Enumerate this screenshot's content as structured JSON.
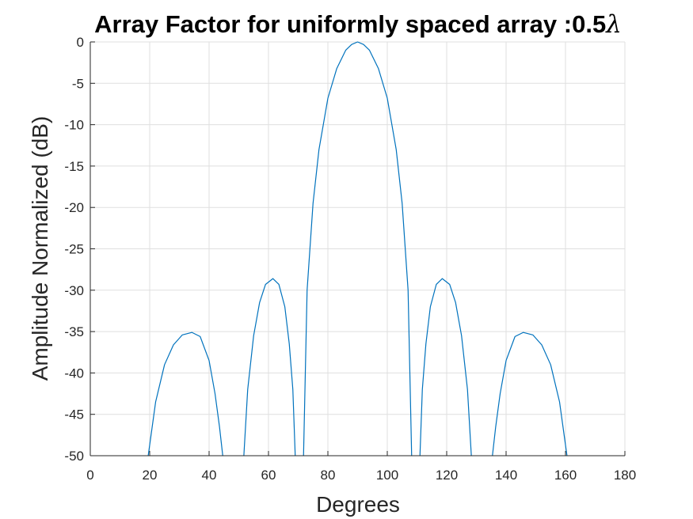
{
  "chart_data": {
    "type": "line",
    "title": "Array Factor for uniformly spaced array :0.5",
    "title_symbol": "λ",
    "xlabel": "Degrees",
    "ylabel": "Amplitude Normalized (dB)",
    "xlim": [
      0,
      180
    ],
    "ylim": [
      -50,
      0
    ],
    "x_ticks": [
      0,
      20,
      40,
      60,
      80,
      100,
      120,
      140,
      160,
      180
    ],
    "y_ticks": [
      0,
      -5,
      -10,
      -15,
      -20,
      -25,
      -30,
      -35,
      -40,
      -45,
      -50
    ],
    "grid": true,
    "series_color": "#0072BD",
    "series": [
      {
        "segments": [
          {
            "x": [
              19.5,
              22,
              25,
              28,
              31,
              34.2,
              37,
              40,
              42,
              43.5,
              44.6
            ],
            "y": [
              -50,
              -43.5,
              -39,
              -36.6,
              -35.4,
              -35.1,
              -35.6,
              -38.5,
              -42.5,
              -46.5,
              -50
            ]
          },
          {
            "x": [
              51.7,
              53,
              55,
              57,
              59,
              61.5,
              63.5,
              65.5,
              67,
              68.2,
              69
            ],
            "y": [
              -50,
              -42,
              -35.5,
              -31.5,
              -29.3,
              -28.6,
              -29.3,
              -32,
              -36.5,
              -42,
              -50
            ]
          },
          {
            "x": [
              71.8,
              73,
              75,
              77,
              80,
              83,
              86,
              88,
              90,
              92,
              94,
              97,
              100,
              103,
              105,
              107,
              108.2
            ],
            "y": [
              -50,
              -30,
              -19.5,
              -13,
              -6.8,
              -3.2,
              -1.0,
              -0.3,
              0,
              -0.3,
              -1.0,
              -3.2,
              -6.8,
              -13,
              -19.5,
              -30,
              -50
            ]
          },
          {
            "x": [
              111,
              111.8,
              113,
              114.5,
              116.5,
              118.5,
              121,
              123,
              125,
              127,
              128.3
            ],
            "y": [
              -50,
              -42,
              -36.5,
              -32,
              -29.3,
              -28.6,
              -29.3,
              -31.5,
              -35.5,
              -42,
              -50
            ]
          },
          {
            "x": [
              135.4,
              136.5,
              138,
              140,
              143,
              145.8,
              149,
              152,
              155,
              158,
              160.5
            ],
            "y": [
              -50,
              -46.5,
              -42.5,
              -38.5,
              -35.6,
              -35.1,
              -35.4,
              -36.6,
              -39,
              -43.5,
              -50
            ]
          }
        ]
      }
    ]
  }
}
